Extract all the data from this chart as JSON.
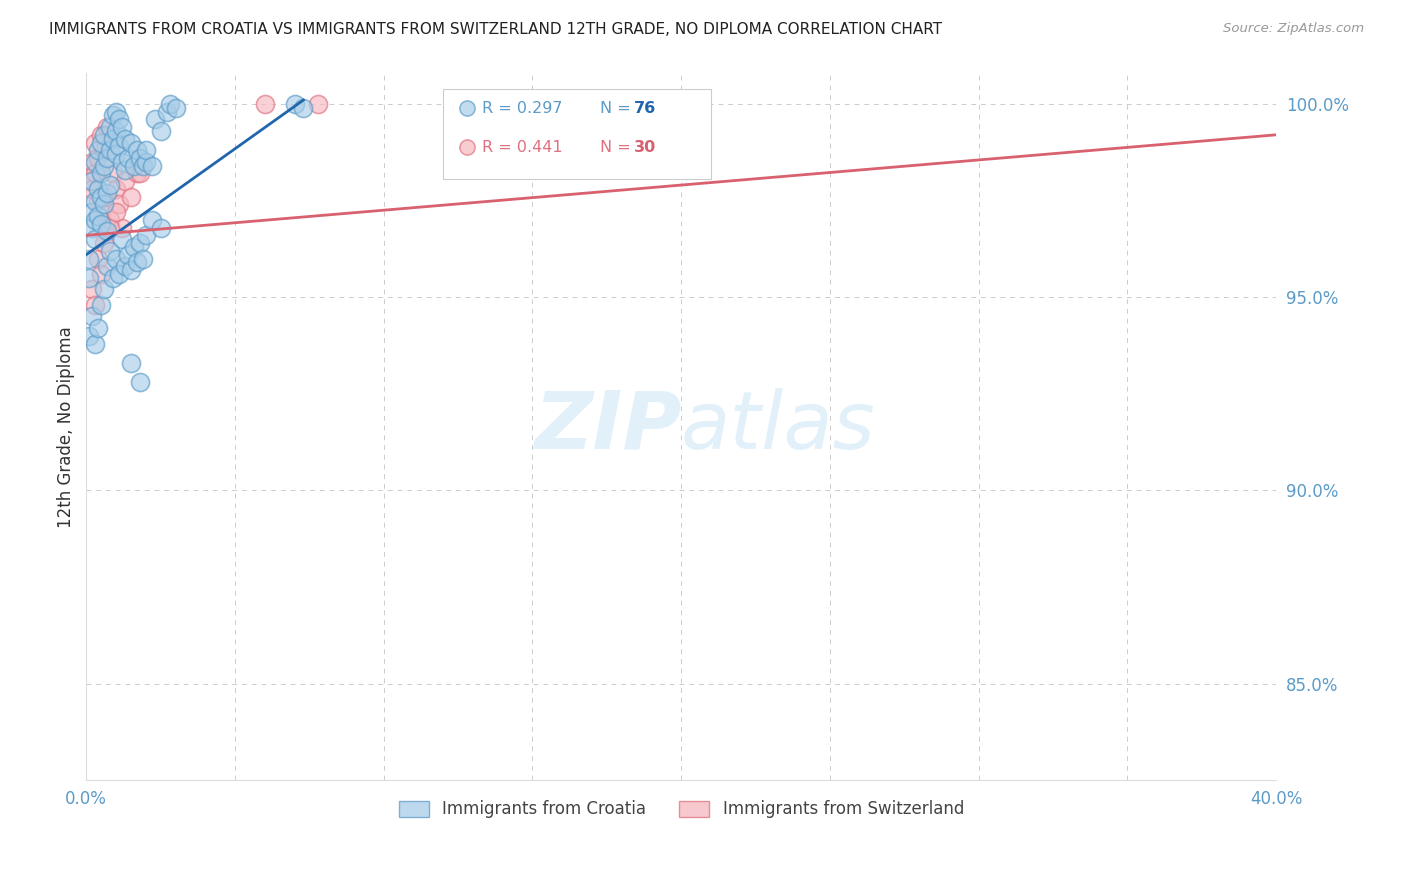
{
  "title": "IMMIGRANTS FROM CROATIA VS IMMIGRANTS FROM SWITZERLAND 12TH GRADE, NO DIPLOMA CORRELATION CHART",
  "source": "Source: ZipAtlas.com",
  "ylabel": "12th Grade, No Diploma",
  "legend_croatia": "Immigrants from Croatia",
  "legend_switzerland": "Immigrants from Switzerland",
  "R_croatia": 0.297,
  "N_croatia": 76,
  "R_switzerland": 0.441,
  "N_switzerland": 30,
  "xlim": [
    0.0,
    0.4
  ],
  "ylim": [
    0.825,
    1.008
  ],
  "yticks": [
    0.85,
    0.9,
    0.95,
    1.0
  ],
  "ytick_labels": [
    "85.0%",
    "90.0%",
    "95.0%",
    "100.0%"
  ],
  "xticks": [
    0.0,
    0.05,
    0.1,
    0.15,
    0.2,
    0.25,
    0.3,
    0.35,
    0.4
  ],
  "xtick_labels": [
    "0.0%",
    "",
    "",
    "",
    "",
    "",
    "",
    "",
    "40.0%"
  ],
  "color_croatia_fill": "#a8cde8",
  "color_croatia_edge": "#5b9bc8",
  "color_switzerland_fill": "#f5b8c0",
  "color_switzerland_edge": "#e07080",
  "color_line_croatia": "#2166ac",
  "color_line_switzerland": "#d9606e",
  "color_right_axis": "#5b9bc8",
  "watermark_color": "#ddeef8",
  "croatia_x": [
    0.001,
    0.001,
    0.002,
    0.002,
    0.002,
    0.003,
    0.003,
    0.003,
    0.003,
    0.004,
    0.004,
    0.004,
    0.005,
    0.005,
    0.005,
    0.005,
    0.006,
    0.006,
    0.006,
    0.007,
    0.007,
    0.007,
    0.008,
    0.008,
    0.008,
    0.009,
    0.009,
    0.01,
    0.01,
    0.01,
    0.011,
    0.011,
    0.012,
    0.012,
    0.013,
    0.013,
    0.014,
    0.015,
    0.016,
    0.017,
    0.018,
    0.019,
    0.02,
    0.02,
    0.022,
    0.023,
    0.025,
    0.027,
    0.028,
    0.03,
    0.001,
    0.002,
    0.003,
    0.004,
    0.005,
    0.006,
    0.007,
    0.008,
    0.009,
    0.01,
    0.011,
    0.012,
    0.013,
    0.014,
    0.015,
    0.016,
    0.017,
    0.018,
    0.019,
    0.02,
    0.022,
    0.025,
    0.07,
    0.073,
    0.015,
    0.018
  ],
  "croatia_y": [
    0.96,
    0.955,
    0.972,
    0.968,
    0.98,
    0.975,
    0.97,
    0.965,
    0.985,
    0.978,
    0.988,
    0.971,
    0.99,
    0.982,
    0.976,
    0.969,
    0.992,
    0.984,
    0.974,
    0.986,
    0.977,
    0.967,
    0.994,
    0.988,
    0.979,
    0.997,
    0.991,
    0.998,
    0.993,
    0.987,
    0.996,
    0.989,
    0.994,
    0.985,
    0.991,
    0.983,
    0.986,
    0.99,
    0.984,
    0.988,
    0.986,
    0.984,
    0.985,
    0.988,
    0.984,
    0.996,
    0.993,
    0.998,
    1.0,
    0.999,
    0.94,
    0.945,
    0.938,
    0.942,
    0.948,
    0.952,
    0.958,
    0.962,
    0.955,
    0.96,
    0.956,
    0.965,
    0.958,
    0.961,
    0.957,
    0.963,
    0.959,
    0.964,
    0.96,
    0.966,
    0.97,
    0.968,
    1.0,
    0.999,
    0.933,
    0.928
  ],
  "switzerland_x": [
    0.001,
    0.002,
    0.002,
    0.003,
    0.003,
    0.004,
    0.004,
    0.005,
    0.005,
    0.006,
    0.006,
    0.007,
    0.008,
    0.009,
    0.01,
    0.011,
    0.012,
    0.013,
    0.015,
    0.017,
    0.002,
    0.003,
    0.004,
    0.005,
    0.006,
    0.008,
    0.01,
    0.018,
    0.06,
    0.078
  ],
  "switzerland_y": [
    0.98,
    0.985,
    0.978,
    0.982,
    0.99,
    0.975,
    0.986,
    0.992,
    0.972,
    0.988,
    0.976,
    0.994,
    0.97,
    0.982,
    0.978,
    0.974,
    0.968,
    0.98,
    0.976,
    0.982,
    0.952,
    0.948,
    0.96,
    0.956,
    0.964,
    0.968,
    0.972,
    0.982,
    1.0,
    1.0
  ],
  "blue_line_x0": 0.0,
  "blue_line_y0": 0.961,
  "blue_line_x1": 0.073,
  "blue_line_y1": 1.001,
  "pink_line_x0": 0.0,
  "pink_line_y0": 0.966,
  "pink_line_x1": 0.4,
  "pink_line_y1": 0.992
}
